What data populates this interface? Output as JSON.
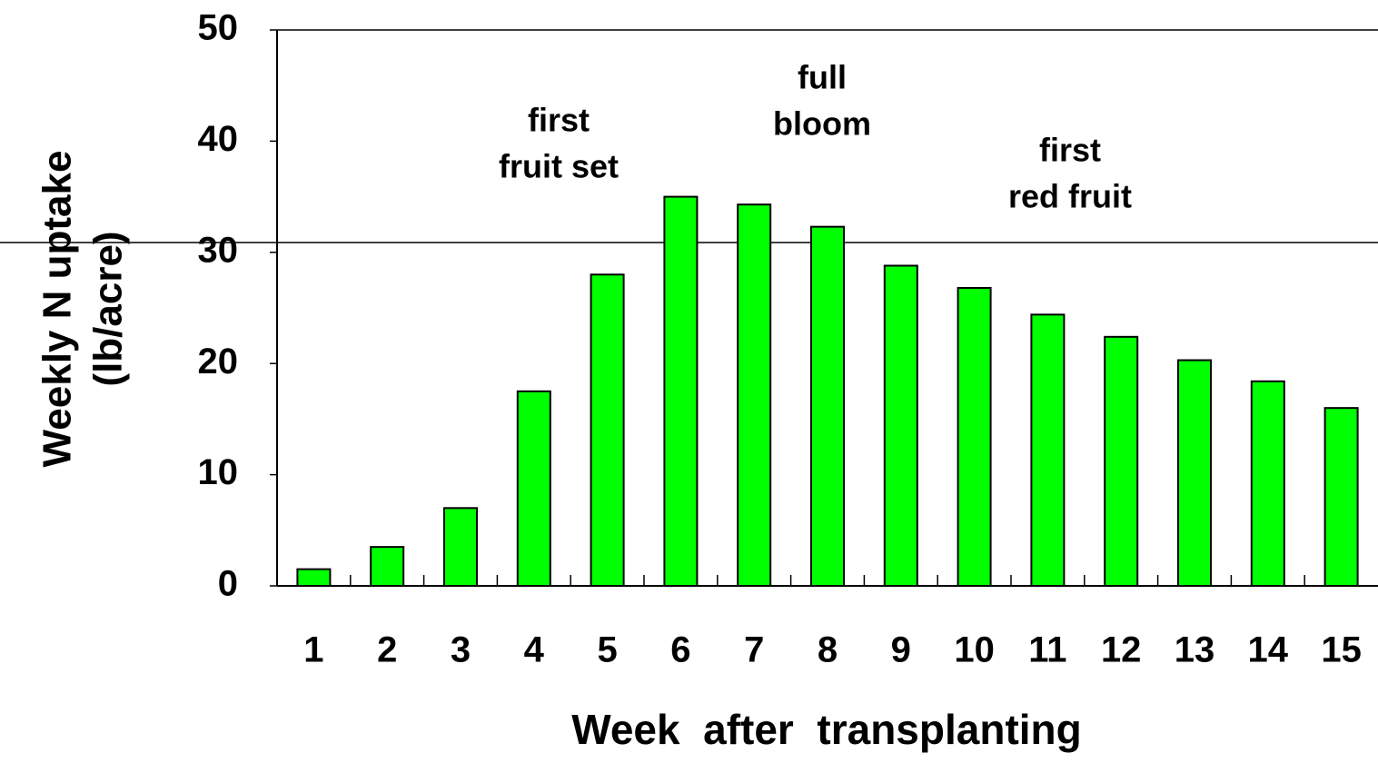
{
  "chart_data": {
    "type": "bar",
    "xlabel": "Week  after  transplanting",
    "ylabel": [
      "Weekly N uptake",
      "(lb/acre)"
    ],
    "annotations": [
      [
        "first",
        "fruit set"
      ],
      [
        "full",
        "bloom"
      ],
      [
        "first",
        "red fruit"
      ]
    ],
    "categories": [
      "1",
      "2",
      "3",
      "4",
      "5",
      "6",
      "7",
      "8",
      "9",
      "10",
      "11",
      "12",
      "13",
      "14",
      "15"
    ],
    "values": [
      1.5,
      3.5,
      7.0,
      17.5,
      28.0,
      35.0,
      34.3,
      32.3,
      28.8,
      26.8,
      24.4,
      22.4,
      20.3,
      18.4,
      16.0
    ],
    "color": "#00ff00",
    "ylim": [
      0,
      50
    ],
    "yticks": [
      0,
      10,
      20,
      30,
      40,
      50
    ],
    "grid": false
  }
}
